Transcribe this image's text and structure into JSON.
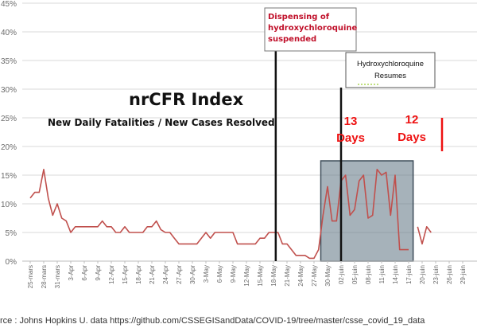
{
  "chart_data": {
    "type": "line",
    "title": "nrCFR Index",
    "subtitle": "New Daily Fatalities / New Cases Resolved",
    "ylim": [
      0,
      45
    ],
    "y_ticks": [
      "0%",
      "5%",
      "10%",
      "15%",
      "20%",
      "25%",
      "30%",
      "35%",
      "40%",
      "45%"
    ],
    "x_tick_labels": [
      "25-mars",
      "28-mars",
      "31-mars",
      "3-Apr",
      "6-Apr",
      "9-Apr",
      "12-Apr",
      "15-Apr",
      "18-Apr",
      "21-Apr",
      "24-Apr",
      "27-Apr",
      "30-Apr",
      "3-May",
      "6-May",
      "9-May",
      "12-May",
      "15-May",
      "18-May",
      "21-May",
      "24-May",
      "27-May",
      "30-May",
      "02-juin",
      "05-juin",
      "08-juin",
      "11-juin",
      "14-juin",
      "17-juin",
      "20-juin",
      "23-juin",
      "26-juin",
      "29-juin"
    ],
    "grid": true,
    "series": [
      {
        "color": "#c0504d",
        "x": [
          0,
          1,
          2,
          3,
          4,
          5,
          6,
          7,
          8,
          9,
          10,
          11,
          12,
          13,
          14,
          15,
          16,
          17,
          18,
          19,
          20,
          21,
          22,
          23,
          24,
          25,
          26,
          27,
          28,
          29,
          30,
          31,
          32,
          33,
          34,
          35,
          36,
          37,
          38,
          39,
          40,
          41,
          42,
          43,
          44,
          45,
          46,
          47,
          48,
          49,
          50,
          51,
          52,
          53,
          54,
          55,
          56,
          57,
          58,
          59,
          60,
          61,
          62,
          63,
          64,
          65,
          66,
          67,
          68,
          69,
          70,
          71,
          72,
          73,
          74,
          75,
          76,
          77,
          78,
          79,
          80,
          81,
          82,
          83,
          84,
          85,
          86,
          87,
          88,
          89,
          90,
          91,
          92,
          93,
          94,
          95,
          96,
          97,
          98,
          99,
          100
        ],
        "values": [
          null,
          null,
          null,
          11,
          12,
          12,
          16,
          11,
          8,
          10,
          7.5,
          7,
          5,
          6,
          6,
          6,
          6,
          6,
          6,
          7,
          6,
          6,
          5,
          5,
          6,
          5,
          5,
          5,
          5,
          6,
          6,
          7,
          5.5,
          5,
          5,
          4,
          3,
          3,
          3,
          3,
          3,
          4,
          5,
          4,
          5,
          5,
          5,
          5,
          5,
          3,
          3,
          3,
          3,
          3,
          4,
          4,
          5,
          5,
          5,
          3,
          3,
          2,
          1,
          1,
          1,
          0.5,
          0.5,
          2,
          8,
          13,
          7,
          7,
          14,
          15,
          8,
          9,
          14,
          15,
          7.5,
          8,
          16,
          15,
          15.5,
          8,
          15,
          2,
          2,
          2,
          null,
          6,
          3,
          6,
          5,
          null,
          null,
          null,
          null,
          null,
          null,
          null,
          null
        ]
      }
    ],
    "shaded_region": {
      "x_start": 67.5,
      "x_end": 88,
      "y_top": 17.5
    },
    "vertical_markers": [
      {
        "x": 57.5,
        "label_lines": [
          "Dispensing of",
          "hydroxychloroquine",
          "suspended"
        ]
      },
      {
        "x": 72,
        "label_lines": [
          "Hydroxychloroquine",
          "Resumes"
        ]
      }
    ],
    "annotations": [
      {
        "text_lines": [
          "13",
          "Days"
        ]
      },
      {
        "text_lines": [
          "12",
          "Days"
        ]
      }
    ]
  },
  "source_text": "rce : Johns Hopkins U. data https://github.com/CSSEGISandData/COVID-19/tree/master/csse_covid_19_data"
}
